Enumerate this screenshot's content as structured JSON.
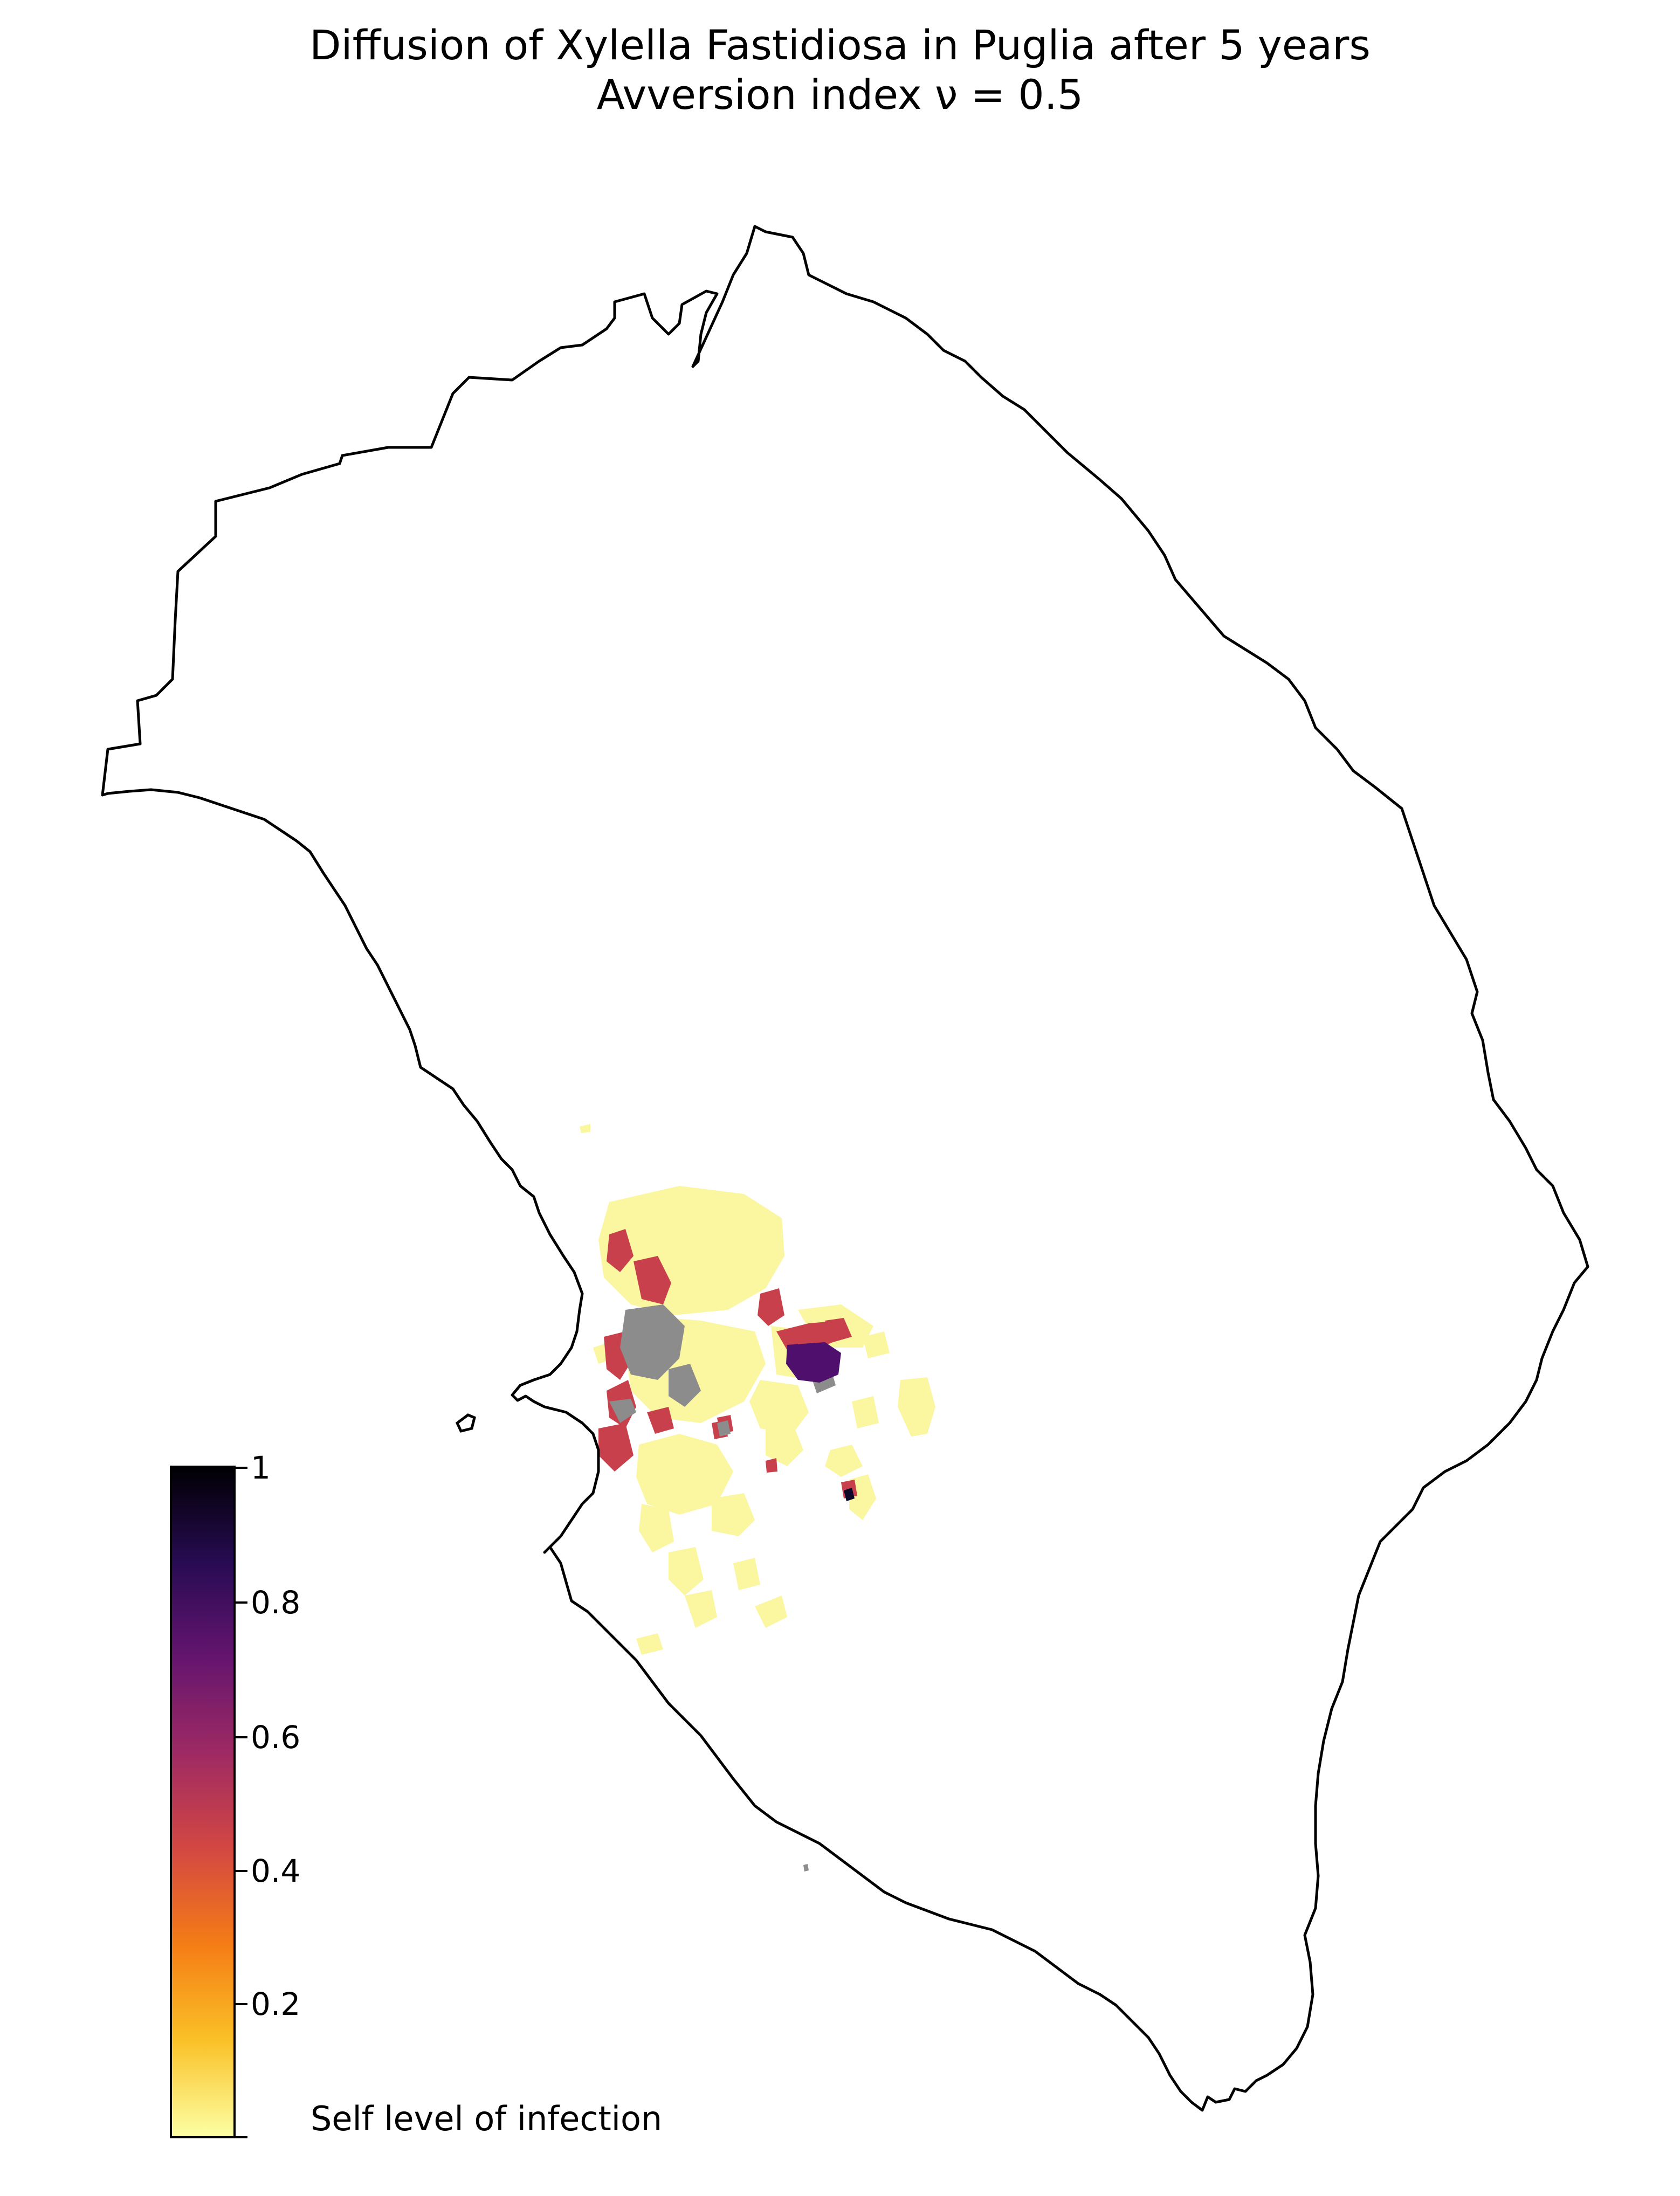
{
  "title": {
    "line1": "Diffusion of Xylella Fastidiosa in Puglia after 5 years",
    "line2": "Avversion index ν = 0.5"
  },
  "colorbar": {
    "label": "Self level of infection",
    "colormap": "inferno_r",
    "range": [
      0,
      1
    ],
    "ticks": [
      {
        "value": 1,
        "label": "1"
      },
      {
        "value": 0.8,
        "label": "0.8"
      },
      {
        "value": 0.6,
        "label": "0.6"
      },
      {
        "value": 0.4,
        "label": "0.4"
      },
      {
        "value": 0.2,
        "label": "0.2"
      }
    ],
    "stops": [
      "#fcffa4",
      "#fac127",
      "#f57d15",
      "#d44842",
      "#9f2a63",
      "#65156e",
      "#280b53",
      "#000004"
    ]
  },
  "map": {
    "region": "Puglia (Salento peninsula)",
    "outline_color": "#000000",
    "background": "#ffffff",
    "colors": {
      "light": "#fbf6a0",
      "medium": "#c7404c",
      "high": "#4f0f6d",
      "max": "#0d0829",
      "grey": "#8c8c8c"
    }
  }
}
